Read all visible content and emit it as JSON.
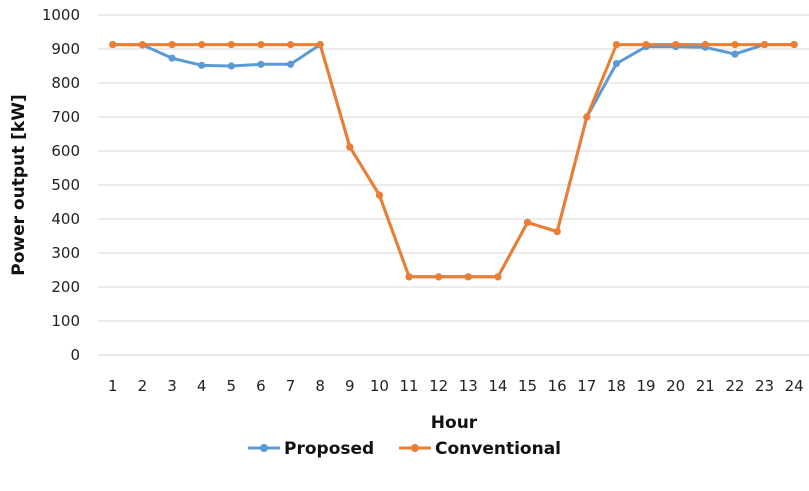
{
  "chart_data": {
    "type": "line",
    "title": "",
    "xlabel": "Hour",
    "ylabel": "Power output [kW]",
    "x": [
      "1",
      "2",
      "3",
      "4",
      "5",
      "6",
      "7",
      "8",
      "9",
      "10",
      "11",
      "12",
      "13",
      "14",
      "15",
      "16",
      "17",
      "18",
      "19",
      "20",
      "21",
      "22",
      "23",
      "24"
    ],
    "ylim": [
      0,
      1000
    ],
    "yticks": [
      "0",
      "100",
      "200",
      "300",
      "400",
      "500",
      "600",
      "700",
      "800",
      "900",
      "1000"
    ],
    "grid": "horizontal",
    "legend_position": "bottom",
    "series": [
      {
        "name": "Proposed",
        "color": "#5B9BD5",
        "values": [
          913,
          912,
          873,
          852,
          850,
          855,
          855,
          913,
          612,
          470,
          230,
          230,
          230,
          230,
          390,
          363,
          700,
          857,
          907,
          907,
          905,
          885,
          913,
          913
        ]
      },
      {
        "name": "Conventional",
        "color": "#ED7D31",
        "values": [
          913,
          913,
          913,
          913,
          913,
          913,
          913,
          913,
          612,
          470,
          230,
          230,
          230,
          230,
          390,
          363,
          700,
          913,
          913,
          913,
          913,
          913,
          913,
          913
        ]
      }
    ]
  }
}
